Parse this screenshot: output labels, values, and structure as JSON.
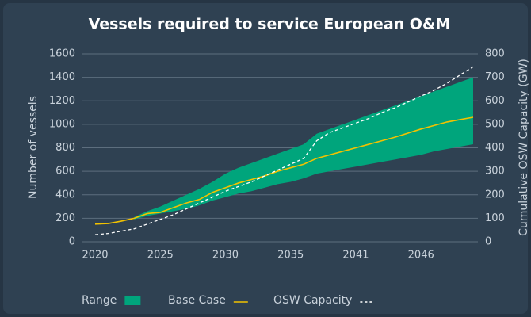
{
  "chart_data": {
    "type": "line",
    "title": "Vessels required to service European O&M",
    "y_label": "Number of vessels",
    "y2_label": "Cumulative OSW Capacity (GW)",
    "categories": [
      "2020",
      null,
      null,
      null,
      null,
      "2025",
      null,
      null,
      null,
      null,
      "2030",
      null,
      null,
      null,
      null,
      "2035",
      null,
      null,
      null,
      null,
      "2041",
      null,
      null,
      null,
      null,
      "2046",
      null,
      null,
      null,
      null
    ],
    "ylim": [
      0,
      1600
    ],
    "yticks": [
      0,
      200,
      400,
      600,
      800,
      1000,
      1200,
      1400,
      1600
    ],
    "y2lim": [
      0,
      800
    ],
    "y2ticks": [
      0,
      100,
      200,
      300,
      400,
      500,
      600,
      700,
      800
    ],
    "grid": true,
    "legend": "bottom",
    "series": [
      {
        "name": "Range",
        "kind": "band",
        "color": "#00a57c",
        "low": [
          null,
          null,
          null,
          190,
          220,
          240,
          260,
          280,
          310,
          350,
          380,
          410,
          430,
          460,
          490,
          510,
          540,
          580,
          600,
          620,
          640,
          660,
          680,
          700,
          720,
          740,
          770,
          790,
          810,
          830
        ],
        "high": [
          null,
          null,
          null,
          210,
          260,
          300,
          350,
          400,
          450,
          510,
          580,
          630,
          670,
          710,
          750,
          790,
          830,
          920,
          960,
          1000,
          1040,
          1080,
          1120,
          1160,
          1200,
          1240,
          1280,
          1320,
          1360,
          1400
        ]
      },
      {
        "name": "Base Case",
        "kind": "line",
        "color": "#f2c200",
        "values": [
          150,
          155,
          175,
          200,
          240,
          250,
          290,
          330,
          360,
          420,
          460,
          500,
          530,
          560,
          600,
          630,
          660,
          710,
          740,
          770,
          800,
          830,
          860,
          890,
          925,
          960,
          990,
          1020,
          1040,
          1060
        ]
      },
      {
        "name": "OSW Capacity",
        "kind": "dashed",
        "axis": "y2",
        "color": "#ffffff",
        "values": [
          30,
          35,
          45,
          55,
          75,
          95,
          115,
          140,
          165,
          190,
          215,
          235,
          255,
          280,
          305,
          330,
          355,
          430,
          465,
          485,
          505,
          525,
          550,
          570,
          595,
          620,
          645,
          675,
          710,
          745
        ]
      }
    ]
  }
}
